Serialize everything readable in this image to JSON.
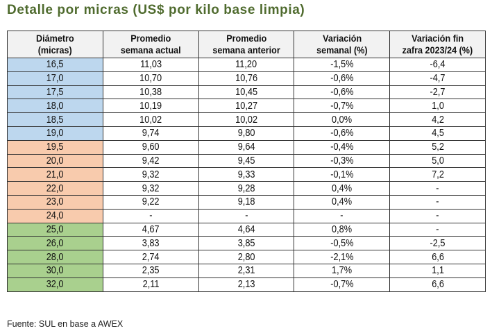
{
  "title": "Detalle por micras (US$ por kilo base limpia)",
  "headers": [
    [
      "Diámetro",
      "(micras)"
    ],
    [
      "Promedio",
      "semana actual"
    ],
    [
      "Promedio",
      "semana anterior"
    ],
    [
      "Variación",
      "semanal (%)"
    ],
    [
      "Variación fin",
      "zafra 2023/24 (%)"
    ]
  ],
  "group_colors": {
    "blue": "#bdd7ee",
    "orange": "#f8cbad",
    "green": "#a9d08e"
  },
  "rows": [
    {
      "group": "blue",
      "cells": [
        "16,5",
        "11,03",
        "11,20",
        "-1,5%",
        "-6,4"
      ]
    },
    {
      "group": "blue",
      "cells": [
        "17,0",
        "10,70",
        "10,76",
        "-0,6%",
        "-4,7"
      ]
    },
    {
      "group": "blue",
      "cells": [
        "17,5",
        "10,38",
        "10,45",
        "-0,6%",
        "-2,7"
      ]
    },
    {
      "group": "blue",
      "cells": [
        "18,0",
        "10,19",
        "10,27",
        "-0,7%",
        "1,0"
      ]
    },
    {
      "group": "blue",
      "cells": [
        "18,5",
        "10,02",
        "10,02",
        "0,0%",
        "4,2"
      ]
    },
    {
      "group": "blue",
      "cells": [
        "19,0",
        "9,74",
        "9,80",
        "-0,6%",
        "4,5"
      ]
    },
    {
      "group": "orange",
      "cells": [
        "19,5",
        "9,60",
        "9,64",
        "-0,4%",
        "5,2"
      ]
    },
    {
      "group": "orange",
      "cells": [
        "20,0",
        "9,42",
        "9,45",
        "-0,3%",
        "5,0"
      ]
    },
    {
      "group": "orange",
      "cells": [
        "21,0",
        "9,32",
        "9,33",
        "-0,1%",
        "7,2"
      ]
    },
    {
      "group": "orange",
      "cells": [
        "22,0",
        "9,32",
        "9,28",
        "0,4%",
        "-"
      ]
    },
    {
      "group": "orange",
      "cells": [
        "23,0",
        "9,22",
        "9,18",
        "0,4%",
        "-"
      ]
    },
    {
      "group": "orange",
      "cells": [
        "24,0",
        "-",
        "-",
        "-",
        "-"
      ]
    },
    {
      "group": "green",
      "cells": [
        "25,0",
        "4,67",
        "4,64",
        "0,8%",
        "-"
      ]
    },
    {
      "group": "green",
      "cells": [
        "26,0",
        "3,83",
        "3,85",
        "-0,5%",
        "-2,5"
      ]
    },
    {
      "group": "green",
      "cells": [
        "28,0",
        "2,74",
        "2,80",
        "-2,1%",
        "6,6"
      ]
    },
    {
      "group": "green",
      "cells": [
        "30,0",
        "2,35",
        "2,31",
        "1,7%",
        "1,1"
      ]
    },
    {
      "group": "green",
      "cells": [
        "32,0",
        "2,11",
        "2,13",
        "-0,7%",
        "6,6"
      ]
    }
  ],
  "source": "Fuente: SUL en base a AWEX"
}
